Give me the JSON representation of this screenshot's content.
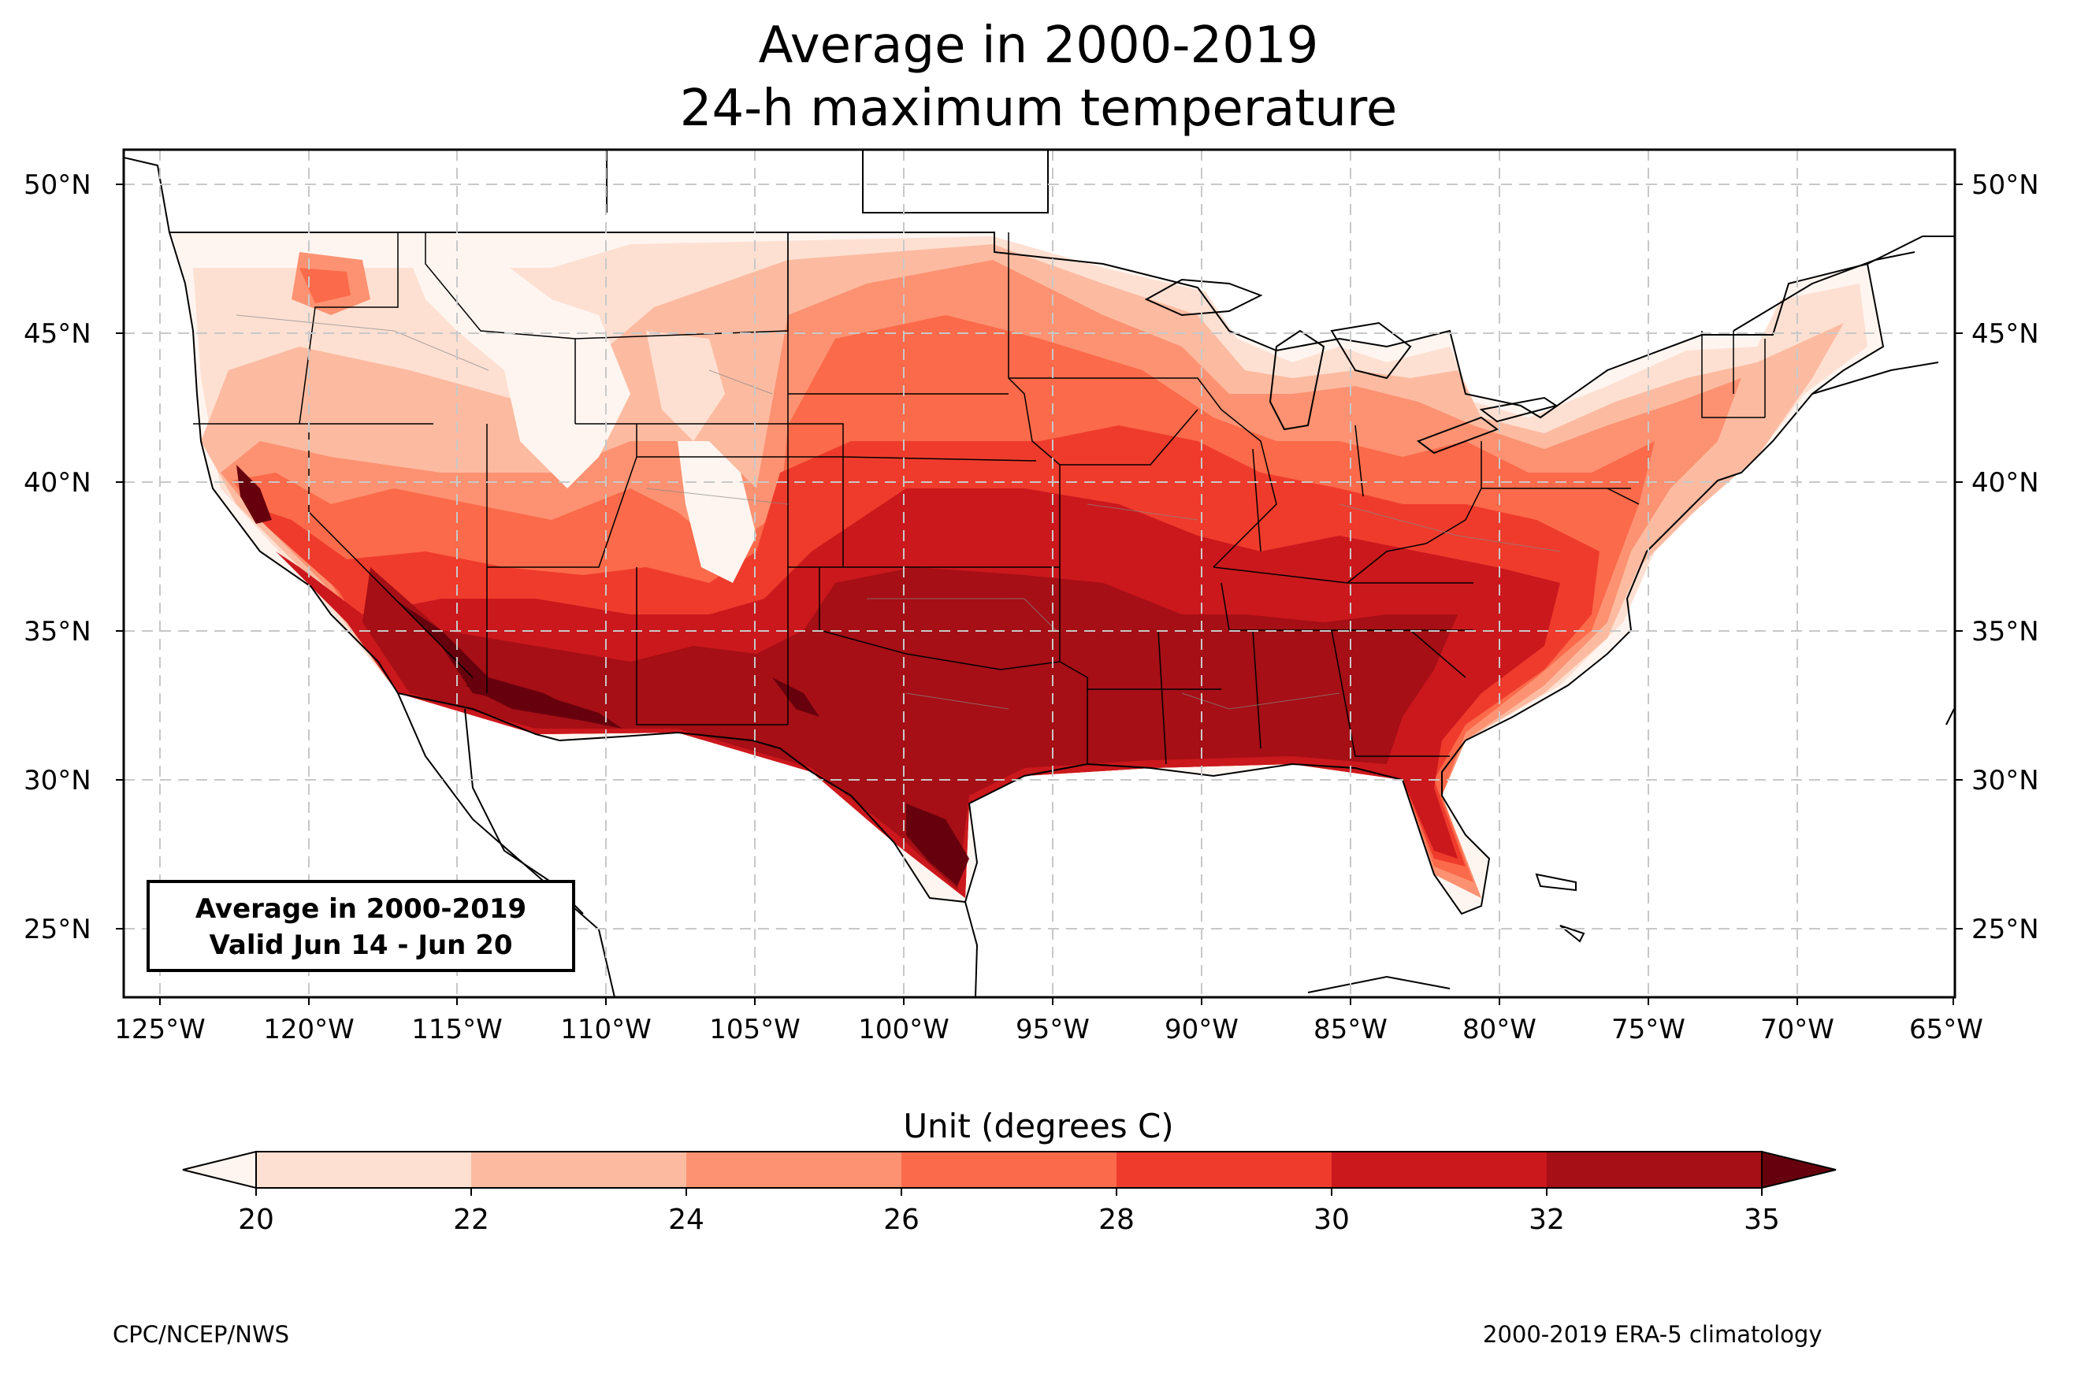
{
  "title_line1": "Average in 2000-2019",
  "title_line2": "24-h maximum temperature",
  "infobox": {
    "line1": "Average in 2000-2019",
    "line2": "Valid Jun 14 - Jun 20"
  },
  "lat_labels": [
    "50°N",
    "45°N",
    "40°N",
    "35°N",
    "30°N",
    "25°N"
  ],
  "lon_labels": [
    "125°W",
    "120°W",
    "115°W",
    "110°W",
    "105°W",
    "100°W",
    "95°W",
    "90°W",
    "85°W",
    "80°W",
    "75°W",
    "70°W",
    "65°W"
  ],
  "colorbar": {
    "title": "Unit (degrees C)",
    "ticks": [
      "20",
      "22",
      "24",
      "26",
      "28",
      "30",
      "32",
      "35"
    ],
    "colors": [
      "#fff5f0",
      "#fee0d2",
      "#fcbba1",
      "#fc9272",
      "#fb6a4a",
      "#ef3b2c",
      "#cb181d",
      "#a50f15",
      "#67000d"
    ]
  },
  "credits": {
    "left": "CPC/NCEP/NWS",
    "right": "2000-2019 ERA-5 climatology"
  }
}
